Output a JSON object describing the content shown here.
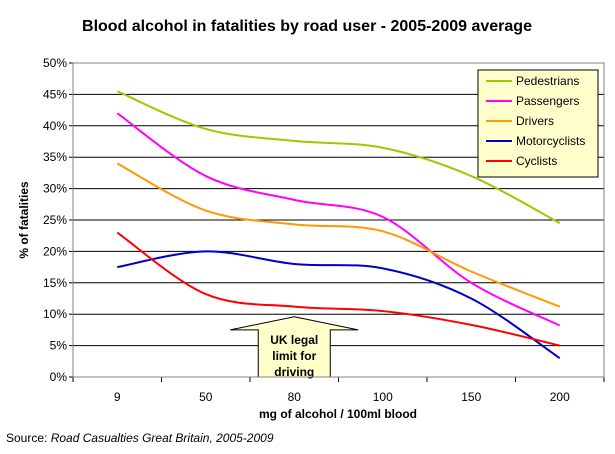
{
  "chart_data": {
    "type": "line",
    "title": "Blood alcohol in fatalities by road user - 2005-2009 average",
    "xlabel": "mg of alcohol / 100ml blood",
    "ylabel": "% of fatalities",
    "categories": [
      "9",
      "50",
      "80",
      "100",
      "150",
      "200"
    ],
    "ylim": [
      0,
      50
    ],
    "yticks": [
      "0%",
      "5%",
      "10%",
      "15%",
      "20%",
      "25%",
      "30%",
      "35%",
      "40%",
      "45%",
      "50%"
    ],
    "grid": "horizontal",
    "legend_position": "top-right",
    "series": [
      {
        "name": "Pedestrians",
        "color": "#99CC00",
        "values": [
          45.5,
          39.5,
          37.6,
          36.5,
          32.0,
          24.5
        ]
      },
      {
        "name": "Passengers",
        "color": "#FF00FF",
        "values": [
          42.0,
          32.0,
          28.2,
          25.5,
          15.0,
          8.2
        ]
      },
      {
        "name": "Drivers",
        "color": "#FF9900",
        "values": [
          34.0,
          26.5,
          24.3,
          23.2,
          16.8,
          11.2
        ]
      },
      {
        "name": "Motorcyclists",
        "color": "#0000CC",
        "values": [
          17.5,
          20.0,
          18.0,
          17.3,
          12.5,
          3.0
        ]
      },
      {
        "name": "Cyclists",
        "color": "#FF0000",
        "values": [
          23.0,
          13.2,
          11.2,
          10.5,
          8.3,
          5.0
        ]
      }
    ],
    "annotation": {
      "lines": [
        "UK legal",
        "limit for",
        "driving"
      ],
      "fill": "#FFFFCC",
      "x_category": "80"
    }
  },
  "source": {
    "prefix": "Source: ",
    "text": "Road Casualties Great Britain, 2005-2009"
  }
}
